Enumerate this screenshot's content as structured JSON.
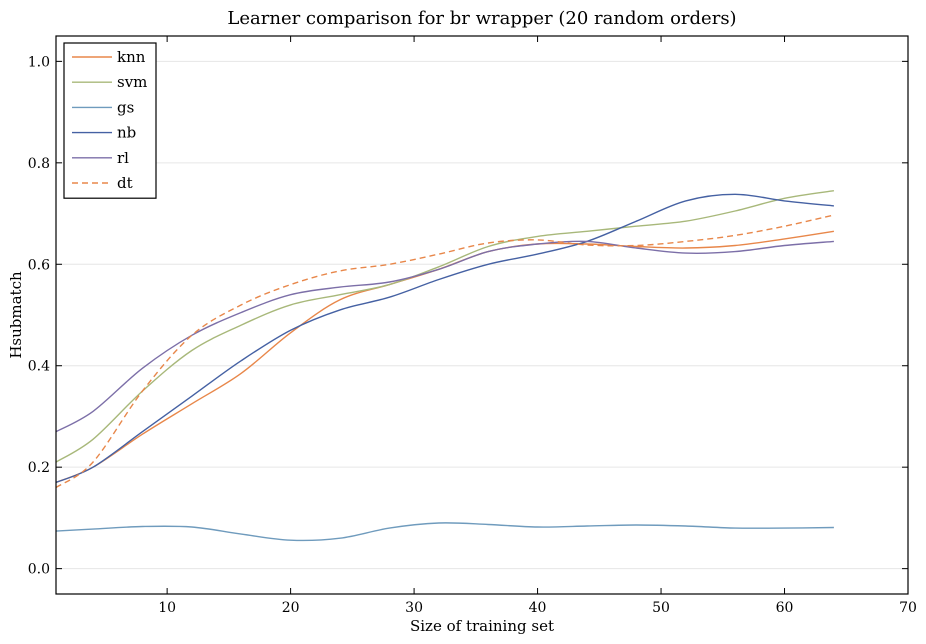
{
  "chart_data": {
    "type": "line",
    "title": "Learner comparison for br wrapper (20 random orders)",
    "xlabel": "Size of training set",
    "ylabel": "Hsubmatch",
    "xlim": [
      1,
      70
    ],
    "ylim": [
      -0.05,
      1.05
    ],
    "xticks": [
      "10",
      "20",
      "30",
      "40",
      "50",
      "60",
      "70"
    ],
    "yticks": [
      "0.0",
      "0.2",
      "0.4",
      "0.6",
      "0.8",
      "1.0"
    ],
    "grid": "horizontal",
    "legend": "top-left",
    "series": [
      {
        "name": "knn",
        "color": "#e8874a",
        "dash": "solid",
        "x": [
          1,
          4,
          8,
          12,
          16,
          20,
          24,
          28,
          32,
          36,
          40,
          44,
          48,
          52,
          56,
          60,
          64
        ],
        "y": [
          0.17,
          0.2,
          0.265,
          0.325,
          0.385,
          0.465,
          0.53,
          0.56,
          0.59,
          0.625,
          0.64,
          0.64,
          0.635,
          0.632,
          0.637,
          0.65,
          0.665
        ]
      },
      {
        "name": "svm",
        "color": "#a8b87a",
        "dash": "solid",
        "x": [
          1,
          4,
          8,
          12,
          16,
          20,
          24,
          28,
          32,
          36,
          40,
          44,
          48,
          52,
          56,
          60,
          64
        ],
        "y": [
          0.21,
          0.255,
          0.35,
          0.43,
          0.48,
          0.52,
          0.54,
          0.56,
          0.595,
          0.635,
          0.655,
          0.665,
          0.675,
          0.685,
          0.705,
          0.73,
          0.745
        ]
      },
      {
        "name": "gs",
        "color": "#6f9bbd",
        "dash": "solid",
        "x": [
          1,
          4,
          8,
          12,
          16,
          20,
          24,
          28,
          32,
          36,
          40,
          44,
          48,
          52,
          56,
          60,
          64
        ],
        "y": [
          0.074,
          0.078,
          0.083,
          0.082,
          0.068,
          0.056,
          0.06,
          0.08,
          0.09,
          0.087,
          0.082,
          0.084,
          0.086,
          0.084,
          0.08,
          0.08,
          0.081
        ]
      },
      {
        "name": "nb",
        "color": "#4561a3",
        "dash": "solid",
        "x": [
          1,
          4,
          8,
          12,
          16,
          20,
          24,
          28,
          32,
          36,
          40,
          44,
          48,
          52,
          56,
          60,
          64
        ],
        "y": [
          0.17,
          0.2,
          0.27,
          0.34,
          0.41,
          0.47,
          0.51,
          0.535,
          0.57,
          0.6,
          0.62,
          0.645,
          0.685,
          0.725,
          0.738,
          0.725,
          0.715
        ]
      },
      {
        "name": "rl",
        "color": "#7c6fa8",
        "dash": "solid",
        "x": [
          1,
          4,
          8,
          12,
          16,
          20,
          24,
          28,
          32,
          36,
          40,
          44,
          48,
          52,
          56,
          60,
          64
        ],
        "y": [
          0.27,
          0.31,
          0.395,
          0.46,
          0.505,
          0.54,
          0.555,
          0.565,
          0.59,
          0.625,
          0.64,
          0.645,
          0.632,
          0.622,
          0.625,
          0.637,
          0.645
        ]
      },
      {
        "name": "dt",
        "color": "#e8874a",
        "dash": "dashed",
        "x": [
          1,
          4,
          8,
          12,
          16,
          20,
          24,
          28,
          32,
          36,
          40,
          44,
          48,
          52,
          56,
          60,
          64
        ],
        "y": [
          0.16,
          0.21,
          0.35,
          0.46,
          0.52,
          0.56,
          0.587,
          0.6,
          0.62,
          0.642,
          0.648,
          0.638,
          0.637,
          0.645,
          0.657,
          0.675,
          0.697
        ]
      }
    ]
  }
}
